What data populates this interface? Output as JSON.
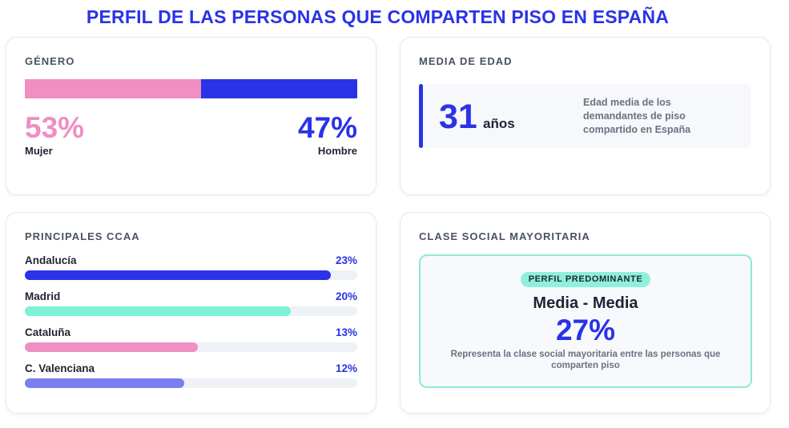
{
  "title": "PERFIL DE LAS PERSONAS QUE COMPARTEN PISO EN ESPAÑA",
  "colors": {
    "accent": "#2a33e6",
    "pink": "#ef8fc4",
    "mint": "#7df2d6",
    "violet": "#7b7ef0"
  },
  "genero": {
    "heading": "GÉNERO",
    "mujer": {
      "pct": "53%",
      "label": "Mujer",
      "share": 0.53
    },
    "hombre": {
      "pct": "47%",
      "label": "Hombre",
      "share": 0.47
    }
  },
  "edad": {
    "heading": "MEDIA DE EDAD",
    "value": "31",
    "unit": "años",
    "description": "Edad media de los demandantes de piso compartido en España"
  },
  "ccaa": {
    "heading": "PRINCIPALES CCAA",
    "items": [
      {
        "name": "Andalucía",
        "pct": "23%",
        "fill": 0.92,
        "color": "#2a33e6"
      },
      {
        "name": "Madrid",
        "pct": "20%",
        "fill": 0.8,
        "color": "#7df2d6"
      },
      {
        "name": "Cataluña",
        "pct": "13%",
        "fill": 0.52,
        "color": "#ef8fc4"
      },
      {
        "name": "C. Valenciana",
        "pct": "12%",
        "fill": 0.48,
        "color": "#7b7ef0"
      }
    ]
  },
  "clase": {
    "heading": "CLASE SOCIAL MAYORITARIA",
    "badge": "PERFIL PREDOMINANTE",
    "name": "Media - Media",
    "pct": "27%",
    "description": "Representa la clase social mayoritaria entre las personas que comparten piso"
  }
}
